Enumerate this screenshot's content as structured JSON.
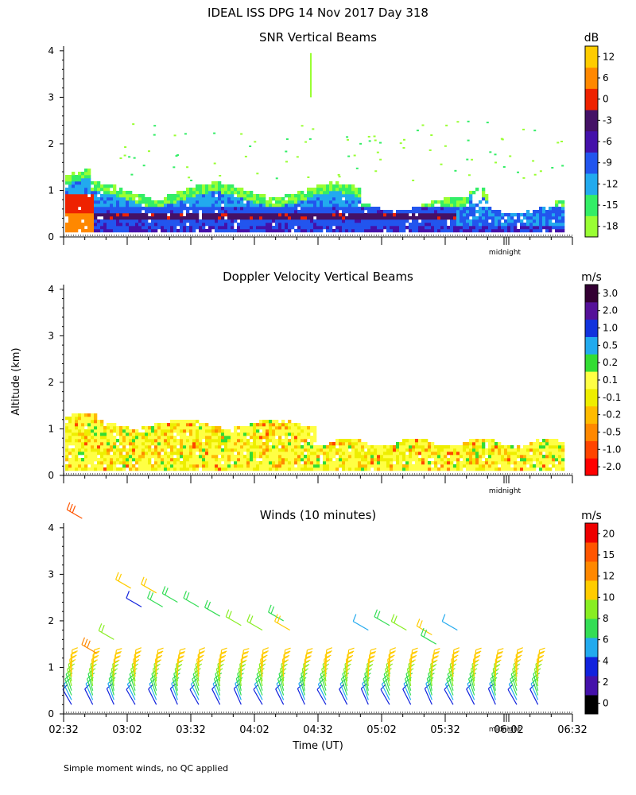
{
  "figure_title": "IDEAL ISS DPG  14 Nov 2017 Day 318",
  "ylabel": "Altitude (km)",
  "xlabel": "Time (UT)",
  "footnote": "Simple moment winds, no QC applied",
  "midnight_label": "midnight",
  "x_tick_labels": [
    "02:32",
    "03:02",
    "03:32",
    "04:02",
    "04:32",
    "05:02",
    "05:32",
    "06:02",
    "06:32"
  ],
  "y_tick_labels": [
    "0",
    "1",
    "2",
    "3",
    "4"
  ],
  "colors": {
    "snr": [
      "#99ff33",
      "#33ee66",
      "#22aaee",
      "#2255ee",
      "#4411aa",
      "#441166",
      "#ee2200",
      "#ff8800",
      "#ffcc00"
    ],
    "doppler": [
      "#ff0000",
      "#ff4400",
      "#ff8800",
      "#ffbb00",
      "#eeee00",
      "#ffff44",
      "#33dd33",
      "#22aaee",
      "#1133dd",
      "#551199",
      "#330033"
    ],
    "winds": [
      "#000000",
      "#4411aa",
      "#1122dd",
      "#22aaee",
      "#33dd55",
      "#88ee22",
      "#ffcc00",
      "#ff8800",
      "#ff5500",
      "#ee0000"
    ]
  },
  "chart_data": [
    {
      "type": "heatmap",
      "title": "SNR Vertical Beams",
      "colorbar_unit": "dB",
      "colorbar_ticks": [
        "12",
        "6",
        "0",
        "-3",
        "-6",
        "-9",
        "-12",
        "-15",
        "-18"
      ],
      "x": [
        "02:32",
        "03:02",
        "03:32",
        "04:02",
        "04:32",
        "05:02",
        "05:32",
        "06:02",
        "06:32"
      ],
      "ylim": [
        0,
        4
      ],
      "ylabel": "Altitude (km)",
      "grid": false,
      "features": [
        {
          "t": "02:32-02:45",
          "alt_km": [
            0.2,
            1.0
          ],
          "value_db": 6
        },
        {
          "t": "02:32-05:45",
          "alt_km": [
            0.2,
            1.3
          ],
          "value_db": -12
        },
        {
          "t": "02:50-05:45",
          "alt_km": [
            0.4,
            0.6
          ],
          "value_db": -6
        },
        {
          "t": "04:52-05:30",
          "alt_km": [
            0.3,
            0.7
          ],
          "value_db": -6
        }
      ]
    },
    {
      "type": "heatmap",
      "title": "Doppler Velocity Vertical Beams",
      "colorbar_unit": "m/s",
      "colorbar_ticks": [
        "3.0",
        "2.0",
        "1.0",
        "0.5",
        "0.2",
        "0.1",
        "-0.1",
        "-0.2",
        "-0.5",
        "-1.0",
        "-2.0"
      ],
      "x": [
        "02:32",
        "03:02",
        "03:32",
        "04:02",
        "04:32",
        "05:02",
        "05:32",
        "06:02",
        "06:32"
      ],
      "ylim": [
        0,
        4
      ],
      "grid": false,
      "features": [
        {
          "t": "02:32-04:30",
          "alt_km": [
            0.2,
            1.3
          ],
          "value_ms": -0.1
        },
        {
          "t": "04:30-06:20",
          "alt_km": [
            0.2,
            0.9
          ],
          "value_ms": -0.2
        }
      ]
    },
    {
      "type": "scatter",
      "title": "Winds (10 minutes)",
      "colorbar_unit": "m/s",
      "colorbar_ticks": [
        "20",
        "15",
        "12",
        "10",
        "8",
        "6",
        "4",
        "2",
        "0"
      ],
      "x": [
        "02:32",
        "02:42",
        "02:52",
        "03:02",
        "03:12",
        "03:22",
        "03:32",
        "03:42",
        "03:52",
        "04:02",
        "04:12",
        "04:22",
        "04:32",
        "04:42",
        "04:52",
        "05:02",
        "05:12",
        "05:22",
        "05:32",
        "05:42",
        "05:52",
        "06:02",
        "06:12"
      ],
      "ylim": [
        0,
        4
      ],
      "grid": false,
      "low_level_profile": {
        "alt_km": [
          0.2,
          0.3,
          0.4,
          0.5,
          0.6,
          0.7,
          0.8,
          0.9,
          1.0
        ],
        "speed_ms": [
          4,
          6,
          8,
          9,
          10,
          11,
          12,
          12,
          12
        ]
      },
      "upper_barbs": [
        {
          "time": "02:37",
          "alt_km": 4.2,
          "speed_ms": 20
        },
        {
          "time": "02:44",
          "alt_km": 1.3,
          "speed_ms": 18
        },
        {
          "time": "02:52",
          "alt_km": 1.6,
          "speed_ms": 11
        },
        {
          "time": "03:00",
          "alt_km": 2.7,
          "speed_ms": 12
        },
        {
          "time": "03:05",
          "alt_km": 2.3,
          "speed_ms": 5
        },
        {
          "time": "03:12",
          "alt_km": 2.6,
          "speed_ms": 12
        },
        {
          "time": "03:15",
          "alt_km": 2.3,
          "speed_ms": 9
        },
        {
          "time": "03:22",
          "alt_km": 2.4,
          "speed_ms": 9
        },
        {
          "time": "03:32",
          "alt_km": 2.3,
          "speed_ms": 8
        },
        {
          "time": "03:42",
          "alt_km": 2.1,
          "speed_ms": 9
        },
        {
          "time": "03:52",
          "alt_km": 1.9,
          "speed_ms": 10
        },
        {
          "time": "04:02",
          "alt_km": 1.8,
          "speed_ms": 11
        },
        {
          "time": "04:12",
          "alt_km": 2.0,
          "speed_ms": 8
        },
        {
          "time": "04:15",
          "alt_km": 1.8,
          "speed_ms": 12
        },
        {
          "time": "04:52",
          "alt_km": 1.8,
          "speed_ms": 6
        },
        {
          "time": "05:02",
          "alt_km": 1.9,
          "speed_ms": 8
        },
        {
          "time": "05:10",
          "alt_km": 1.8,
          "speed_ms": 10
        },
        {
          "time": "05:22",
          "alt_km": 1.7,
          "speed_ms": 12
        },
        {
          "time": "05:24",
          "alt_km": 1.5,
          "speed_ms": 9
        },
        {
          "time": "05:34",
          "alt_km": 1.8,
          "speed_ms": 6
        }
      ]
    }
  ]
}
